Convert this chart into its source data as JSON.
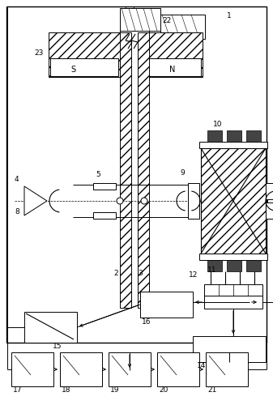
{
  "bg": "#ffffff",
  "lc": "#000000",
  "fig_w": 3.37,
  "fig_h": 5.0,
  "dpi": 100
}
